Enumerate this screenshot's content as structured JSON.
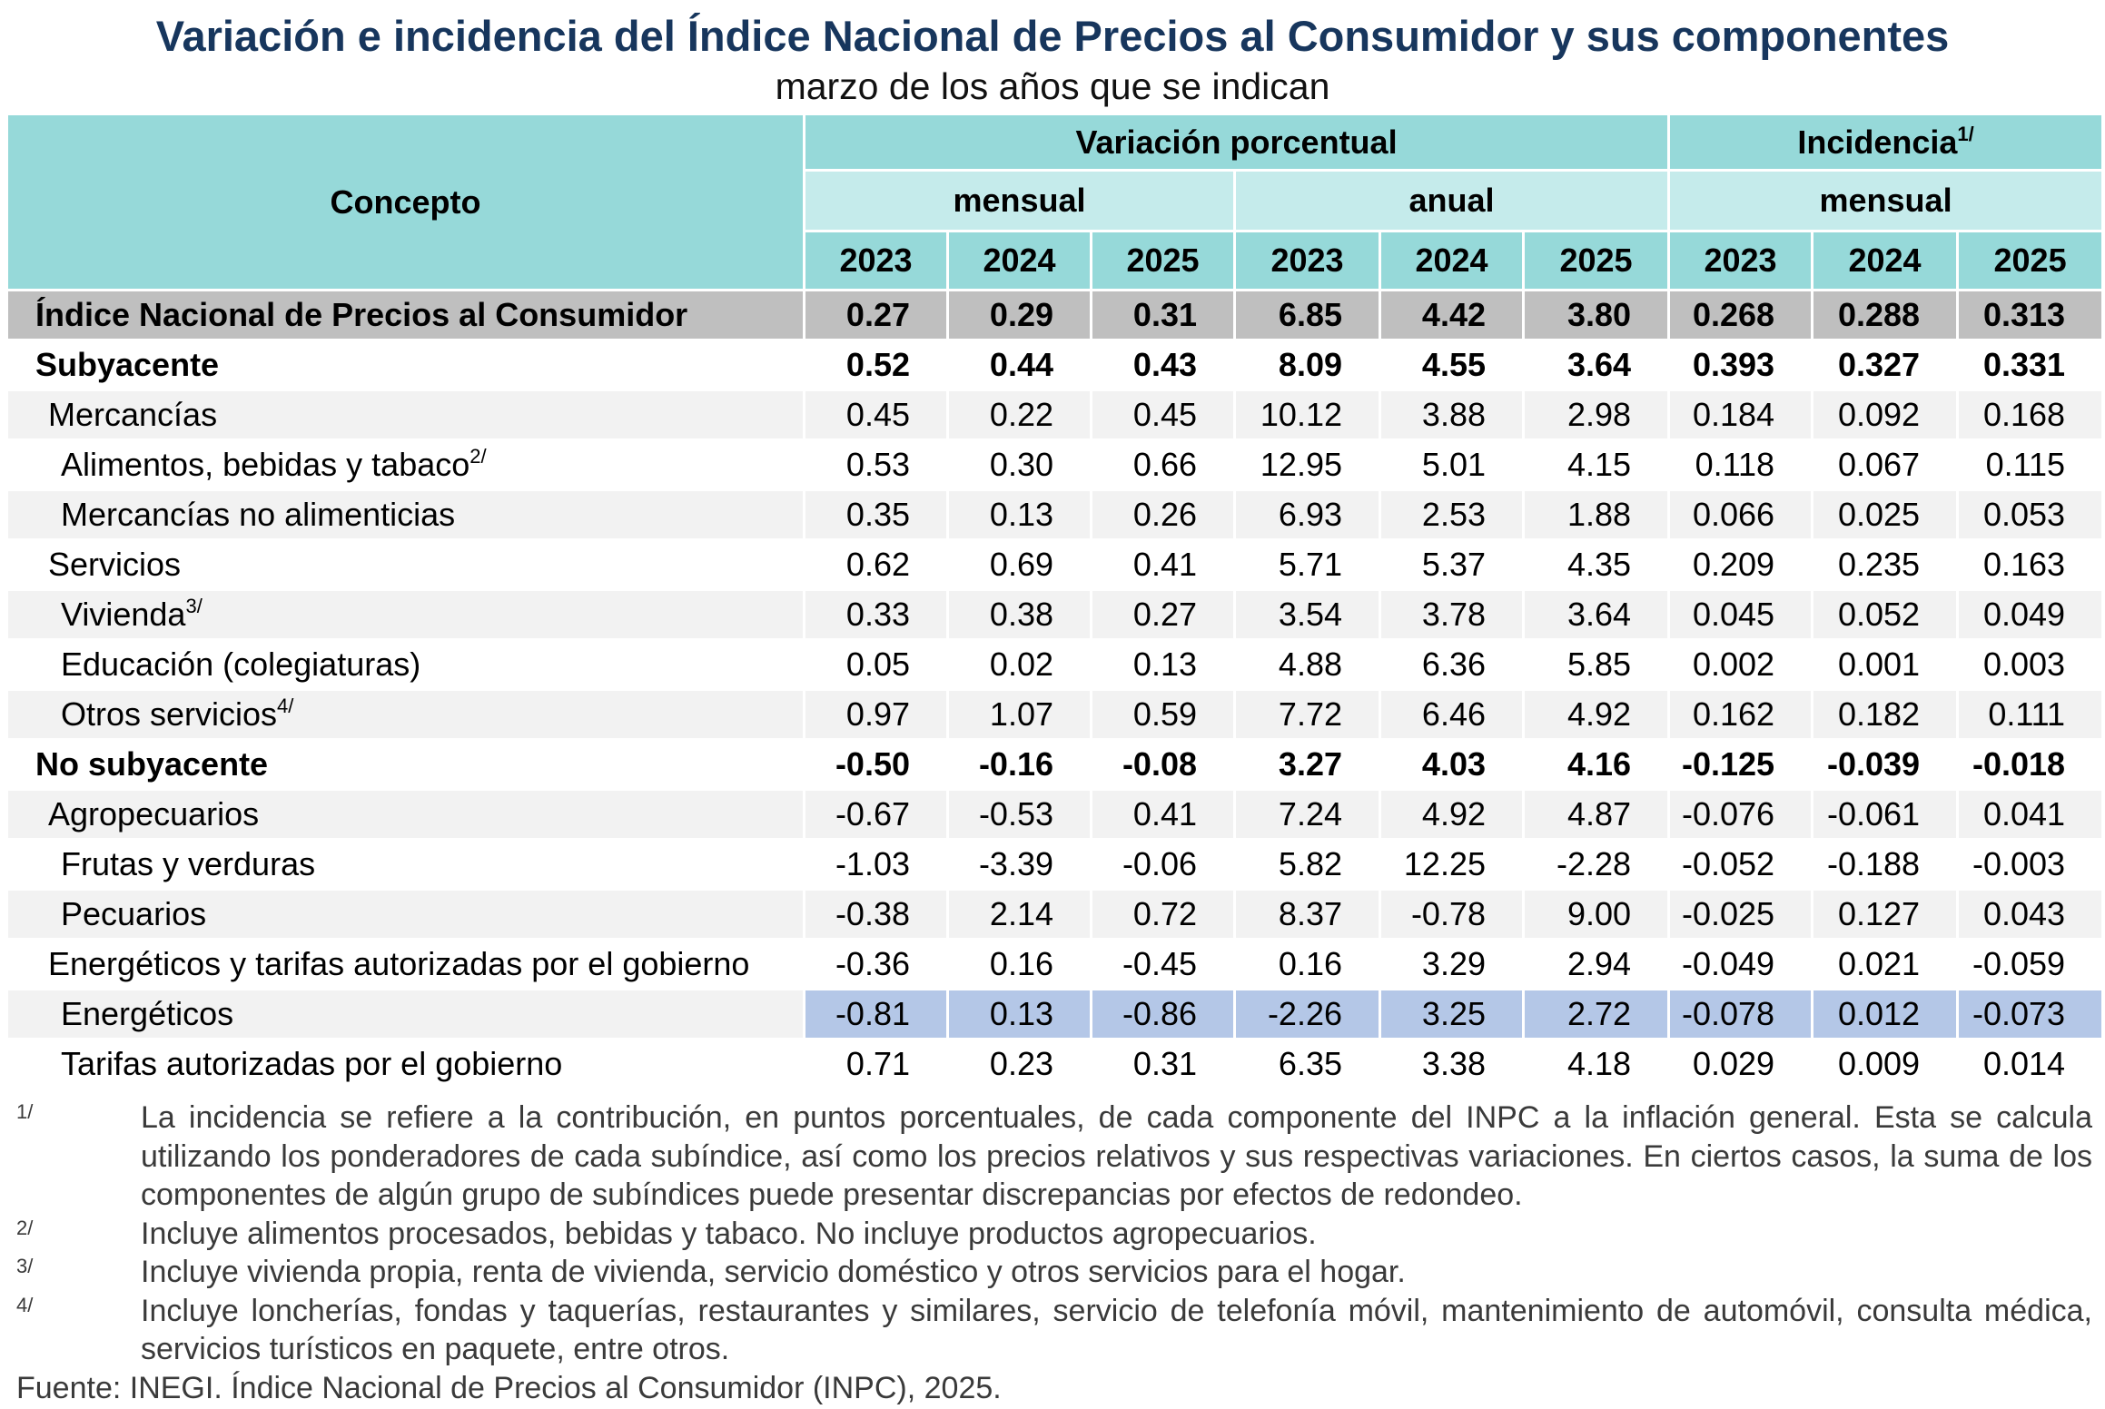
{
  "title": "Variación e incidencia del Índice Nacional de Precios al Consumidor y sus componentes",
  "subtitle": "marzo de los años que se indican",
  "header": {
    "concept": "Concepto",
    "groups": [
      {
        "text": "Variación porcentual"
      },
      {
        "text": "Incidencia",
        "note": "1/"
      }
    ],
    "subgroups": [
      "mensual",
      "anual",
      "mensual"
    ],
    "years": [
      "2023",
      "2024",
      "2025",
      "2023",
      "2024",
      "2025",
      "2023",
      "2024",
      "2025"
    ]
  },
  "table": {
    "rows": [
      {
        "concept": "Índice Nacional de Precios al Consumidor",
        "values": [
          "0.27",
          "0.29",
          "0.31",
          "6.85",
          "4.42",
          "3.80",
          "0.268",
          "0.288",
          "0.313"
        ]
      },
      {
        "concept": "Subyacente",
        "values": [
          "0.52",
          "0.44",
          "0.43",
          "8.09",
          "4.55",
          "3.64",
          "0.393",
          "0.327",
          "0.331"
        ]
      },
      {
        "concept": "Mercancías",
        "values": [
          "0.45",
          "0.22",
          "0.45",
          "10.12",
          "3.88",
          "2.98",
          "0.184",
          "0.092",
          "0.168"
        ]
      },
      {
        "concept": "Alimentos, bebidas y tabaco",
        "note": "2/",
        "values": [
          "0.53",
          "0.30",
          "0.66",
          "12.95",
          "5.01",
          "4.15",
          "0.118",
          "0.067",
          "0.115"
        ]
      },
      {
        "concept": "Mercancías no alimenticias",
        "values": [
          "0.35",
          "0.13",
          "0.26",
          "6.93",
          "2.53",
          "1.88",
          "0.066",
          "0.025",
          "0.053"
        ]
      },
      {
        "concept": "Servicios",
        "values": [
          "0.62",
          "0.69",
          "0.41",
          "5.71",
          "5.37",
          "4.35",
          "0.209",
          "0.235",
          "0.163"
        ]
      },
      {
        "concept": "Vivienda",
        "note": "3/",
        "values": [
          "0.33",
          "0.38",
          "0.27",
          "3.54",
          "3.78",
          "3.64",
          "0.045",
          "0.052",
          "0.049"
        ]
      },
      {
        "concept": "Educación (colegiaturas)",
        "values": [
          "0.05",
          "0.02",
          "0.13",
          "4.88",
          "6.36",
          "5.85",
          "0.002",
          "0.001",
          "0.003"
        ]
      },
      {
        "concept": "Otros servicios",
        "note": "4/",
        "values": [
          "0.97",
          "1.07",
          "0.59",
          "7.72",
          "6.46",
          "4.92",
          "0.162",
          "0.182",
          "0.111"
        ]
      },
      {
        "concept": "No subyacente",
        "values": [
          "-0.50",
          "-0.16",
          "-0.08",
          "3.27",
          "4.03",
          "4.16",
          "-0.125",
          "-0.039",
          "-0.018"
        ]
      },
      {
        "concept": "Agropecuarios",
        "values": [
          "-0.67",
          "-0.53",
          "0.41",
          "7.24",
          "4.92",
          "4.87",
          "-0.076",
          "-0.061",
          "0.041"
        ]
      },
      {
        "concept": "Frutas y verduras",
        "values": [
          "-1.03",
          "-3.39",
          "-0.06",
          "5.82",
          "12.25",
          "-2.28",
          "-0.052",
          "-0.188",
          "-0.003"
        ]
      },
      {
        "concept": "Pecuarios",
        "values": [
          "-0.38",
          "2.14",
          "0.72",
          "8.37",
          "-0.78",
          "9.00",
          "-0.025",
          "0.127",
          "0.043"
        ]
      },
      {
        "concept": "Energéticos y tarifas autorizadas por el gobierno",
        "values": [
          "-0.36",
          "0.16",
          "-0.45",
          "0.16",
          "3.29",
          "2.94",
          "-0.049",
          "0.021",
          "-0.059"
        ]
      },
      {
        "concept": "Energéticos",
        "values": [
          "-0.81",
          "0.13",
          "-0.86",
          "-2.26",
          "3.25",
          "2.72",
          "-0.078",
          "0.012",
          "-0.073"
        ]
      },
      {
        "concept": "Tarifas autorizadas por el gobierno",
        "values": [
          "0.71",
          "0.23",
          "0.31",
          "6.35",
          "3.38",
          "4.18",
          "0.029",
          "0.009",
          "0.014"
        ]
      }
    ]
  },
  "footnotes": [
    {
      "marker": "1/",
      "text": "La incidencia se refiere a la contribución, en puntos porcentuales, de cada componente del INPC a la inflación general. Esta se calcula utilizando los ponderadores de cada subíndice, así como los precios relativos y sus respectivas variaciones. En ciertos casos, la suma de los componentes de algún grupo de subíndices puede presentar discrepancias por efectos de redondeo."
    },
    {
      "marker": "2/",
      "text": "Incluye alimentos procesados, bebidas y tabaco. No incluye productos agropecuarios."
    },
    {
      "marker": "3/",
      "text": "Incluye vivienda propia, renta de vivienda, servicio doméstico y otros servicios para el hogar."
    },
    {
      "marker": "4/",
      "text": "Incluye loncherías, fondas y taquerías, restaurantes y similares, servicio de telefonía móvil, mantenimiento de automóvil, consulta médica, servicios turísticos en paquete, entre otros."
    }
  ],
  "source": "Fuente: INEGI. Índice Nacional de Precios al Consumidor (INPC), 2025."
}
